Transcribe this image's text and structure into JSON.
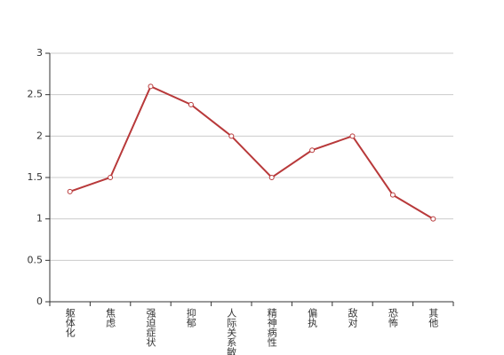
{
  "chart_data": {
    "type": "line",
    "categories": [
      "躯体化",
      "焦虑",
      "强迫症状",
      "抑郁",
      "人际关系敏感",
      "精神病性",
      "偏执",
      "敌对",
      "恐怖",
      "其他"
    ],
    "series": [
      {
        "color": "#b8393a",
        "values": [
          1.33,
          1.5,
          2.6,
          2.38,
          2.0,
          1.5,
          1.83,
          2.0,
          1.29,
          1.0
        ]
      }
    ],
    "ylim": [
      0,
      3
    ],
    "yticks": [
      0,
      0.5,
      1,
      1.5,
      2,
      2.5,
      3
    ],
    "grid": true
  }
}
